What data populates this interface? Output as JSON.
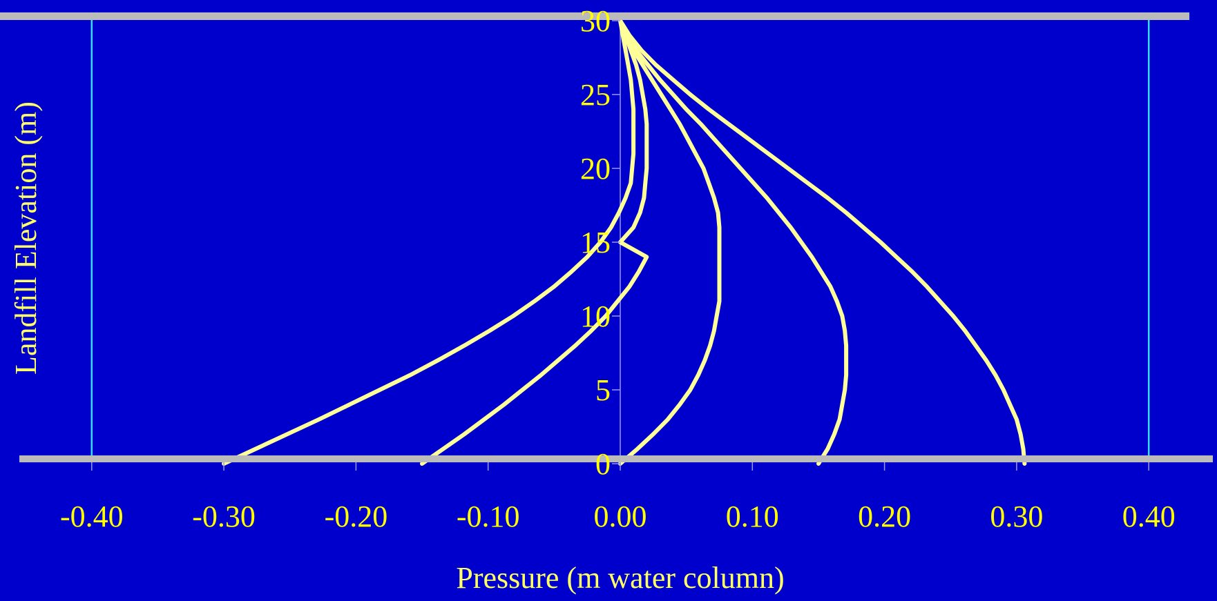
{
  "chart_data": {
    "type": "line",
    "xlabel": "Pressure (m water column)",
    "ylabel": "Landfill Elevation (m)",
    "xlim": [
      -0.4,
      0.4
    ],
    "ylim": [
      0,
      30
    ],
    "x_ticks": [
      -0.4,
      -0.3,
      -0.2,
      -0.1,
      0.0,
      0.1,
      0.2,
      0.3,
      0.4
    ],
    "x_tick_labels": [
      "-0.40",
      "-0.30",
      "-0.20",
      "-0.10",
      "0.00",
      "0.10",
      "0.20",
      "0.30",
      "0.40"
    ],
    "y_ticks": [
      0,
      5,
      10,
      15,
      20,
      25,
      30
    ],
    "y_tick_labels": [
      "0",
      "5",
      "10",
      "15",
      "20",
      "25",
      "30"
    ],
    "grid": false,
    "legend": "none",
    "series": [
      {
        "points": [
          [
            -0.3,
            0
          ],
          [
            -0.276,
            1
          ],
          [
            -0.252,
            2
          ],
          [
            -0.228,
            3
          ],
          [
            -0.205,
            4
          ],
          [
            -0.182,
            5
          ],
          [
            -0.159,
            6
          ],
          [
            -0.138,
            7
          ],
          [
            -0.118,
            8
          ],
          [
            -0.099,
            9
          ],
          [
            -0.081,
            10
          ],
          [
            -0.065,
            11
          ],
          [
            -0.05,
            12
          ],
          [
            -0.037,
            13
          ],
          [
            -0.025,
            14
          ],
          [
            -0.015,
            15
          ],
          [
            -0.007,
            16
          ],
          [
            -0.001,
            17
          ],
          [
            0.004,
            18
          ],
          [
            0.008,
            19
          ],
          [
            0.009,
            20
          ],
          [
            0.01,
            21
          ],
          [
            0.01,
            22
          ],
          [
            0.01,
            23
          ],
          [
            0.01,
            24
          ],
          [
            0.009,
            25
          ],
          [
            0.008,
            26
          ],
          [
            0.006,
            27
          ],
          [
            0.004,
            28
          ],
          [
            0.002,
            29
          ],
          [
            0.0,
            30
          ]
        ]
      },
      {
        "points": [
          [
            -0.15,
            0
          ],
          [
            -0.134,
            1
          ],
          [
            -0.118,
            2
          ],
          [
            -0.103,
            3
          ],
          [
            -0.088,
            4
          ],
          [
            -0.074,
            5
          ],
          [
            -0.06,
            6
          ],
          [
            -0.047,
            7
          ],
          [
            -0.034,
            8
          ],
          [
            -0.022,
            9
          ],
          [
            -0.011,
            10
          ],
          [
            -0.002,
            11
          ],
          [
            0.007,
            12
          ],
          [
            0.014,
            13
          ],
          [
            0.02,
            14
          ],
          [
            0.0,
            15
          ],
          [
            0.01,
            16
          ],
          [
            0.015,
            17
          ],
          [
            0.018,
            18
          ],
          [
            0.019,
            19
          ],
          [
            0.02,
            20
          ],
          [
            0.02,
            21
          ],
          [
            0.02,
            22
          ],
          [
            0.02,
            23
          ],
          [
            0.019,
            24
          ],
          [
            0.017,
            25
          ],
          [
            0.015,
            26
          ],
          [
            0.012,
            27
          ],
          [
            0.008,
            28
          ],
          [
            0.004,
            29
          ],
          [
            0.0,
            30
          ]
        ]
      },
      {
        "points": [
          [
            0.0,
            0
          ],
          [
            0.013,
            1
          ],
          [
            0.025,
            2
          ],
          [
            0.036,
            3
          ],
          [
            0.045,
            4
          ],
          [
            0.053,
            5
          ],
          [
            0.059,
            6
          ],
          [
            0.064,
            7
          ],
          [
            0.068,
            8
          ],
          [
            0.071,
            9
          ],
          [
            0.073,
            10
          ],
          [
            0.075,
            11
          ],
          [
            0.075,
            12
          ],
          [
            0.075,
            13
          ],
          [
            0.075,
            14
          ],
          [
            0.075,
            15
          ],
          [
            0.075,
            16
          ],
          [
            0.074,
            17
          ],
          [
            0.071,
            18
          ],
          [
            0.067,
            19
          ],
          [
            0.063,
            20
          ],
          [
            0.057,
            21
          ],
          [
            0.051,
            22
          ],
          [
            0.045,
            23
          ],
          [
            0.038,
            24
          ],
          [
            0.031,
            25
          ],
          [
            0.024,
            26
          ],
          [
            0.017,
            27
          ],
          [
            0.01,
            28
          ],
          [
            0.004,
            29
          ],
          [
            0.0,
            30
          ]
        ]
      },
      {
        "points": [
          [
            0.15,
            0
          ],
          [
            0.157,
            1
          ],
          [
            0.162,
            2
          ],
          [
            0.166,
            3
          ],
          [
            0.168,
            4
          ],
          [
            0.17,
            5
          ],
          [
            0.171,
            6
          ],
          [
            0.171,
            7
          ],
          [
            0.171,
            8
          ],
          [
            0.17,
            9
          ],
          [
            0.168,
            10
          ],
          [
            0.164,
            11
          ],
          [
            0.159,
            12
          ],
          [
            0.152,
            13
          ],
          [
            0.145,
            14
          ],
          [
            0.137,
            15
          ],
          [
            0.129,
            16
          ],
          [
            0.12,
            17
          ],
          [
            0.111,
            18
          ],
          [
            0.101,
            19
          ],
          [
            0.091,
            20
          ],
          [
            0.081,
            21
          ],
          [
            0.071,
            22
          ],
          [
            0.061,
            23
          ],
          [
            0.05,
            24
          ],
          [
            0.04,
            25
          ],
          [
            0.03,
            26
          ],
          [
            0.021,
            27
          ],
          [
            0.012,
            28
          ],
          [
            0.005,
            29
          ],
          [
            0.0,
            30
          ]
        ]
      },
      {
        "points": [
          [
            0.306,
            0
          ],
          [
            0.305,
            1
          ],
          [
            0.303,
            2
          ],
          [
            0.3,
            3
          ],
          [
            0.295,
            4
          ],
          [
            0.29,
            5
          ],
          [
            0.284,
            6
          ],
          [
            0.277,
            7
          ],
          [
            0.269,
            8
          ],
          [
            0.261,
            9
          ],
          [
            0.252,
            10
          ],
          [
            0.242,
            11
          ],
          [
            0.232,
            12
          ],
          [
            0.221,
            13
          ],
          [
            0.209,
            14
          ],
          [
            0.197,
            15
          ],
          [
            0.184,
            16
          ],
          [
            0.171,
            17
          ],
          [
            0.157,
            18
          ],
          [
            0.142,
            19
          ],
          [
            0.127,
            20
          ],
          [
            0.112,
            21
          ],
          [
            0.097,
            22
          ],
          [
            0.082,
            23
          ],
          [
            0.067,
            24
          ],
          [
            0.053,
            25
          ],
          [
            0.04,
            26
          ],
          [
            0.027,
            27
          ],
          [
            0.016,
            28
          ],
          [
            0.007,
            29
          ],
          [
            0.0,
            30
          ]
        ]
      }
    ]
  },
  "colors": {
    "background": "#0000CC",
    "series_line": "#FFFF99",
    "tick_label": "#FFFF00",
    "axis_label": "#FFFF66",
    "boundary_bar": "#BBBBBB",
    "side_line": "#33DDEE",
    "axis_line": "#9999EE"
  }
}
